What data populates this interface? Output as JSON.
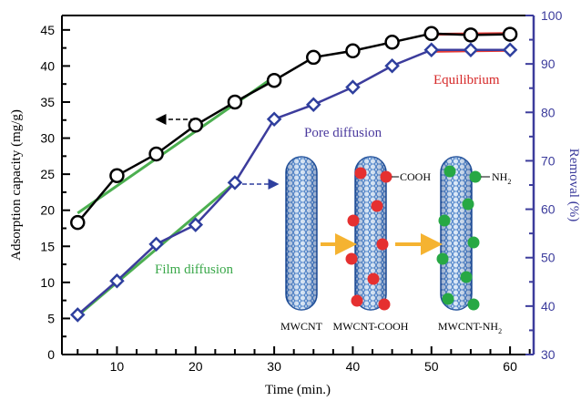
{
  "chart_data": {
    "type": "line",
    "xlabel": "Time (min.)",
    "ylabel": "Adsorption capacity (mg/g)",
    "y2label": "Removal (%)",
    "xlim": [
      3,
      63
    ],
    "ylim": [
      0,
      47
    ],
    "y2lim": [
      30,
      100
    ],
    "x_ticks": [
      10,
      20,
      30,
      40,
      50,
      60
    ],
    "y_ticks": [
      0,
      5,
      10,
      15,
      20,
      25,
      30,
      35,
      40,
      45
    ],
    "y2_ticks": [
      30,
      40,
      50,
      60,
      70,
      80,
      90,
      100
    ],
    "grid": false,
    "series": [
      {
        "axis": "left",
        "marker": "circle",
        "color": "#000000",
        "x": [
          5,
          10,
          15,
          20,
          25,
          30,
          35,
          40,
          45,
          50,
          55,
          60
        ],
        "values": [
          18.3,
          24.8,
          27.8,
          31.8,
          35.0,
          38.0,
          41.2,
          42.1,
          43.3,
          44.5,
          44.3,
          44.4
        ]
      },
      {
        "axis": "right",
        "marker": "diamond",
        "color": "#3c3c9c",
        "x": [
          5,
          10,
          15,
          20,
          25,
          30,
          35,
          40,
          45,
          50,
          55,
          60
        ],
        "values": [
          38.2,
          45.2,
          52.8,
          56.8,
          65.5,
          78.6,
          81.6,
          85.2,
          89.6,
          92.9,
          92.9,
          92.9
        ]
      }
    ],
    "fit_lines": [
      {
        "color": "#4caf50",
        "axis": "left",
        "x": [
          5,
          30
        ],
        "values": [
          19.6,
          38.5
        ]
      },
      {
        "color": "#4caf50",
        "axis": "right",
        "x": [
          5,
          25
        ],
        "values": [
          38.0,
          65.5
        ]
      },
      {
        "color": "#e53935",
        "axis": "left",
        "x": [
          50,
          60
        ],
        "values": [
          44.4,
          44.5
        ]
      },
      {
        "color": "#e53935",
        "axis": "right",
        "x": [
          50,
          60
        ],
        "values": [
          92.6,
          92.8
        ]
      }
    ],
    "annotations": {
      "film": "Film diffusion",
      "pore": "Pore diffusion",
      "equilibrium": "Equilibrium",
      "cooh": "COOH",
      "nh2_base": "NH",
      "nh2_sub": "2",
      "mwcnt": "MWCNT",
      "mwcnt_cooh": "MWCNT-COOH",
      "mwcnt_nh2_base": "MWCNT-NH",
      "mwcnt_nh2_sub": "2"
    }
  }
}
